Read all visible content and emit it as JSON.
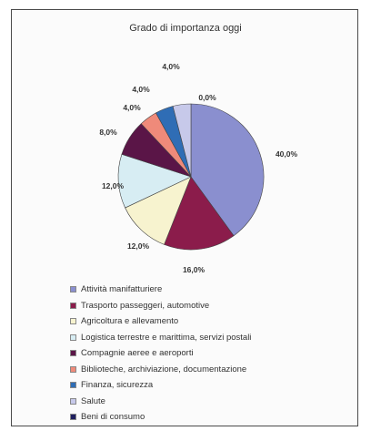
{
  "chart_data": {
    "type": "pie",
    "title": "Grado di importanza oggi",
    "categories": [
      "Attività manifatturiere",
      "Trasporto passeggeri, automotive",
      "Agricoltura e allevamento",
      "Logistica terrestre e marittima, servizi postali",
      "Compagnie aeree e aeroporti",
      "Biblioteche, archiviazione, documentazione",
      "Finanza, sicurezza",
      "Salute",
      "Beni di consumo"
    ],
    "values": [
      40.0,
      16.0,
      12.0,
      12.0,
      8.0,
      4.0,
      4.0,
      4.0,
      0.0
    ],
    "value_labels": [
      "40,0%",
      "16,0%",
      "12,0%",
      "12,0%",
      "8,0%",
      "4,0%",
      "4,0%",
      "4,0%",
      "0,0%"
    ],
    "colors": [
      "#8a8fcf",
      "#8b1c4b",
      "#f7f3cf",
      "#d7edf3",
      "#5a1547",
      "#ef8a7a",
      "#2f6db5",
      "#c7c9ea",
      "#1f1f5f"
    ],
    "legend_position": "bottom"
  }
}
